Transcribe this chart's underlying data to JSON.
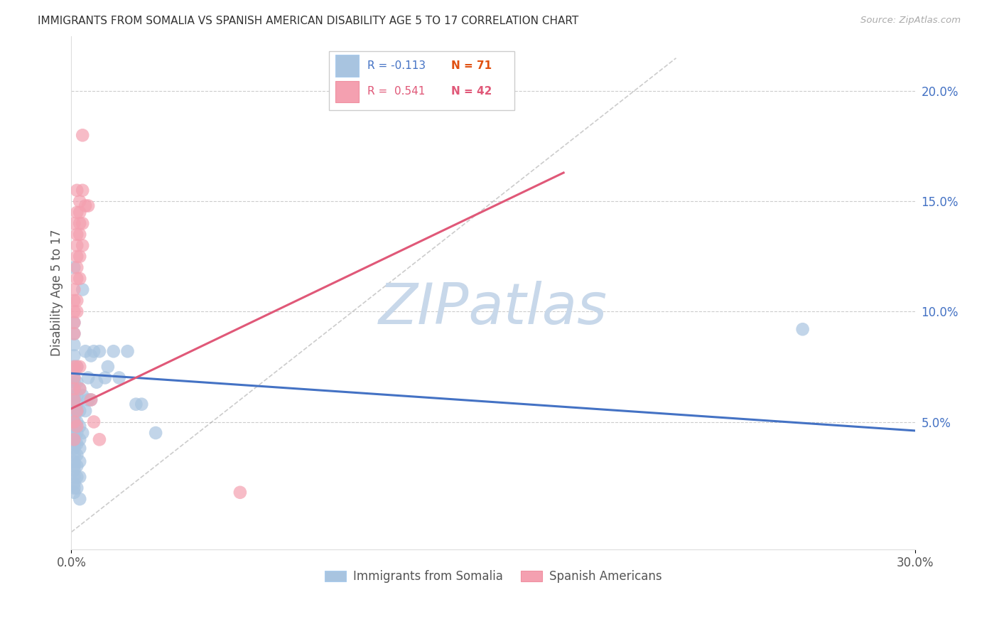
{
  "title": "IMMIGRANTS FROM SOMALIA VS SPANISH AMERICAN DISABILITY AGE 5 TO 17 CORRELATION CHART",
  "source": "Source: ZipAtlas.com",
  "ylabel": "Disability Age 5 to 17",
  "right_yticks": [
    "20.0%",
    "15.0%",
    "10.0%",
    "5.0%"
  ],
  "right_ytick_vals": [
    0.2,
    0.15,
    0.1,
    0.05
  ],
  "xlim": [
    0.0,
    0.3
  ],
  "ylim": [
    -0.008,
    0.225
  ],
  "somalia_color": "#a8c4e0",
  "spanish_color": "#f4a0b0",
  "somalia_line_color": "#4472c4",
  "spanish_line_color": "#e05878",
  "watermark": "ZIPatlas",
  "watermark_color": "#c8d8ea",
  "somalia_scatter": [
    [
      0.001,
      0.12
    ],
    [
      0.001,
      0.095
    ],
    [
      0.001,
      0.09
    ],
    [
      0.001,
      0.085
    ],
    [
      0.001,
      0.08
    ],
    [
      0.001,
      0.075
    ],
    [
      0.001,
      0.07
    ],
    [
      0.001,
      0.068
    ],
    [
      0.001,
      0.065
    ],
    [
      0.001,
      0.062
    ],
    [
      0.001,
      0.06
    ],
    [
      0.001,
      0.058
    ],
    [
      0.001,
      0.055
    ],
    [
      0.001,
      0.052
    ],
    [
      0.001,
      0.05
    ],
    [
      0.001,
      0.048
    ],
    [
      0.001,
      0.045
    ],
    [
      0.001,
      0.042
    ],
    [
      0.001,
      0.04
    ],
    [
      0.001,
      0.038
    ],
    [
      0.001,
      0.035
    ],
    [
      0.001,
      0.032
    ],
    [
      0.001,
      0.03
    ],
    [
      0.001,
      0.028
    ],
    [
      0.001,
      0.025
    ],
    [
      0.001,
      0.022
    ],
    [
      0.001,
      0.02
    ],
    [
      0.001,
      0.018
    ],
    [
      0.002,
      0.075
    ],
    [
      0.002,
      0.068
    ],
    [
      0.002,
      0.062
    ],
    [
      0.002,
      0.058
    ],
    [
      0.002,
      0.055
    ],
    [
      0.002,
      0.05
    ],
    [
      0.002,
      0.045
    ],
    [
      0.002,
      0.04
    ],
    [
      0.002,
      0.035
    ],
    [
      0.002,
      0.03
    ],
    [
      0.002,
      0.025
    ],
    [
      0.002,
      0.02
    ],
    [
      0.003,
      0.065
    ],
    [
      0.003,
      0.055
    ],
    [
      0.003,
      0.048
    ],
    [
      0.003,
      0.042
    ],
    [
      0.003,
      0.038
    ],
    [
      0.003,
      0.032
    ],
    [
      0.003,
      0.025
    ],
    [
      0.003,
      0.015
    ],
    [
      0.004,
      0.11
    ],
    [
      0.004,
      0.062
    ],
    [
      0.004,
      0.045
    ],
    [
      0.005,
      0.082
    ],
    [
      0.005,
      0.055
    ],
    [
      0.006,
      0.07
    ],
    [
      0.006,
      0.06
    ],
    [
      0.007,
      0.08
    ],
    [
      0.007,
      0.06
    ],
    [
      0.008,
      0.082
    ],
    [
      0.009,
      0.068
    ],
    [
      0.01,
      0.082
    ],
    [
      0.012,
      0.07
    ],
    [
      0.013,
      0.075
    ],
    [
      0.015,
      0.082
    ],
    [
      0.017,
      0.07
    ],
    [
      0.02,
      0.082
    ],
    [
      0.023,
      0.058
    ],
    [
      0.025,
      0.058
    ],
    [
      0.03,
      0.045
    ],
    [
      0.26,
      0.092
    ]
  ],
  "spanish_scatter": [
    [
      0.001,
      0.14
    ],
    [
      0.001,
      0.11
    ],
    [
      0.001,
      0.105
    ],
    [
      0.001,
      0.1
    ],
    [
      0.001,
      0.095
    ],
    [
      0.001,
      0.09
    ],
    [
      0.001,
      0.075
    ],
    [
      0.001,
      0.07
    ],
    [
      0.001,
      0.065
    ],
    [
      0.001,
      0.06
    ],
    [
      0.001,
      0.05
    ],
    [
      0.001,
      0.042
    ],
    [
      0.002,
      0.155
    ],
    [
      0.002,
      0.145
    ],
    [
      0.002,
      0.135
    ],
    [
      0.002,
      0.13
    ],
    [
      0.002,
      0.125
    ],
    [
      0.002,
      0.12
    ],
    [
      0.002,
      0.115
    ],
    [
      0.002,
      0.105
    ],
    [
      0.002,
      0.1
    ],
    [
      0.002,
      0.075
    ],
    [
      0.002,
      0.055
    ],
    [
      0.002,
      0.048
    ],
    [
      0.003,
      0.15
    ],
    [
      0.003,
      0.145
    ],
    [
      0.003,
      0.14
    ],
    [
      0.003,
      0.135
    ],
    [
      0.003,
      0.125
    ],
    [
      0.003,
      0.115
    ],
    [
      0.003,
      0.075
    ],
    [
      0.003,
      0.065
    ],
    [
      0.004,
      0.18
    ],
    [
      0.004,
      0.155
    ],
    [
      0.004,
      0.14
    ],
    [
      0.004,
      0.13
    ],
    [
      0.005,
      0.148
    ],
    [
      0.006,
      0.148
    ],
    [
      0.007,
      0.06
    ],
    [
      0.008,
      0.05
    ],
    [
      0.01,
      0.042
    ],
    [
      0.06,
      0.018
    ]
  ],
  "somalia_trendline": [
    [
      0.0,
      0.072
    ],
    [
      0.3,
      0.046
    ]
  ],
  "spanish_trendline": [
    [
      0.0,
      0.056
    ],
    [
      0.175,
      0.163
    ]
  ],
  "ref_line": [
    [
      0.0,
      0.0
    ],
    [
      0.215,
      0.215
    ]
  ]
}
